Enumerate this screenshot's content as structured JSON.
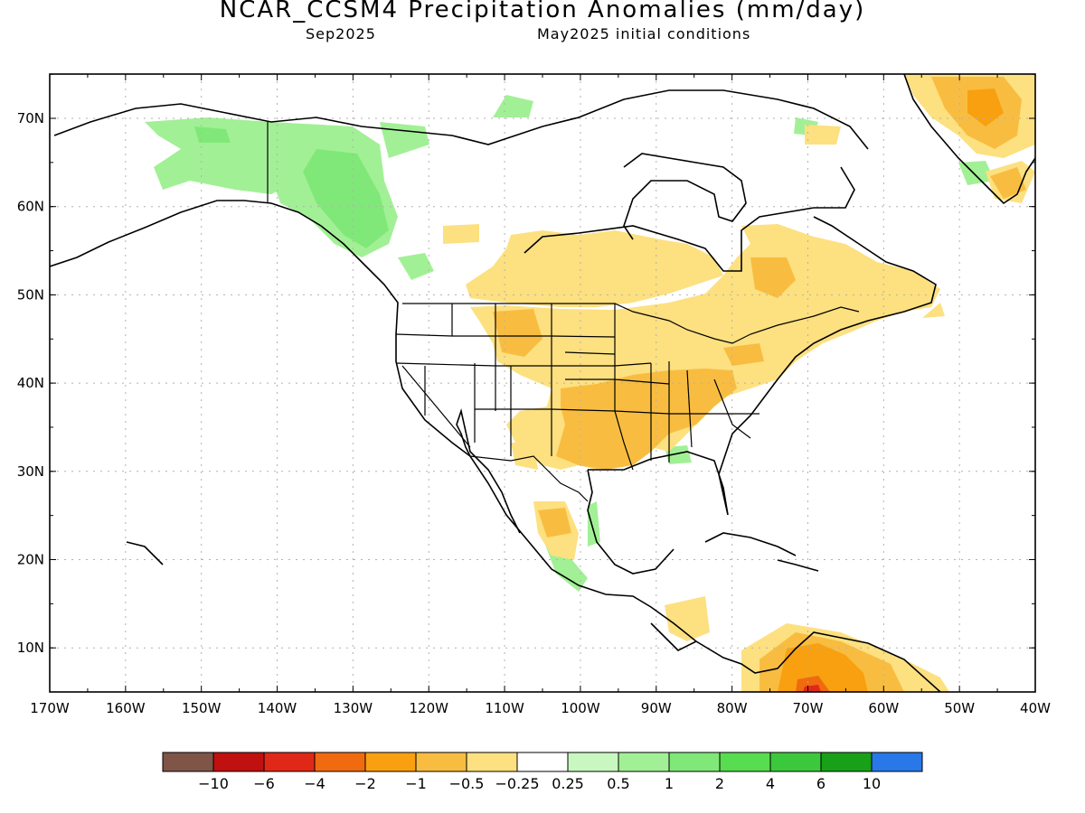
{
  "title": "NCAR_CCSM4 Precipitation Anomalies (mm/day)",
  "subtitle_left": "Sep2025",
  "subtitle_right": "May2025 initial conditions",
  "lat_labels": [
    "70N",
    "60N",
    "50N",
    "40N",
    "30N",
    "20N",
    "10N"
  ],
  "lon_labels": [
    "170W",
    "160W",
    "150W",
    "140W",
    "130W",
    "120W",
    "110W",
    "100W",
    "90W",
    "80W",
    "70W",
    "60W",
    "50W",
    "40W"
  ],
  "colorbar": {
    "colors": [
      "#7f5548",
      "#c01010",
      "#e02818",
      "#f06a10",
      "#f8a010",
      "#f8bd40",
      "#fde080",
      "#ffffff",
      "#c8f8c0",
      "#a2f096",
      "#80e878",
      "#58dc50",
      "#3cc83c",
      "#18a018",
      "#2878e8"
    ],
    "labels": [
      "−10",
      "−6",
      "−4",
      "−2",
      "−1",
      "−0.5",
      "−0.25",
      "0.25",
      "0.5",
      "1",
      "2",
      "4",
      "6",
      "10"
    ]
  }
}
